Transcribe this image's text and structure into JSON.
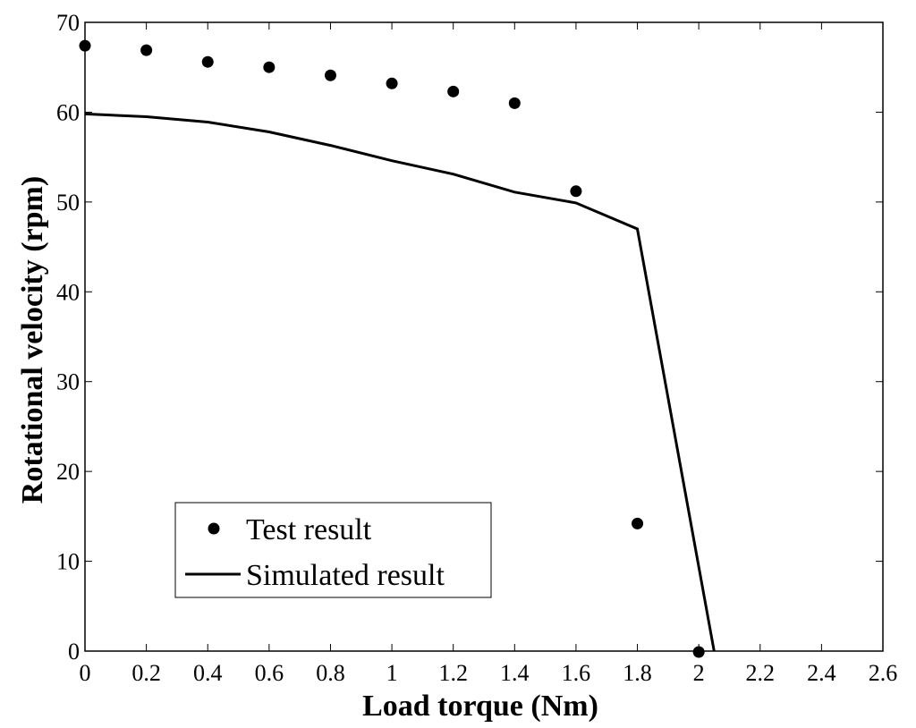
{
  "chart_data": {
    "type": "line",
    "xlabel": "Load torque (Nm)",
    "ylabel": "Rotational  velocity (rpm)",
    "xlim": [
      0,
      2.6
    ],
    "ylim": [
      0,
      70
    ],
    "xticks": [
      "0",
      "0.2",
      "0.4",
      "0.6",
      "0.8",
      "1",
      "1.2",
      "1.4",
      "1.6",
      "1.8",
      "2",
      "2.2",
      "2.4",
      "2.6"
    ],
    "yticks": [
      "0",
      "10",
      "20",
      "30",
      "40",
      "50",
      "60",
      "70"
    ],
    "grid": false,
    "legend_position": "bottom-left",
    "series": [
      {
        "name": "Test result",
        "style": "markers",
        "color": "#000000",
        "x": [
          0,
          0.2,
          0.4,
          0.6,
          0.8,
          1.0,
          1.2,
          1.4,
          1.6,
          1.8,
          2.0
        ],
        "y": [
          67.4,
          66.9,
          65.6,
          65.0,
          64.1,
          63.2,
          62.3,
          61.0,
          51.2,
          14.2,
          -0.1
        ]
      },
      {
        "name": "Simulated result",
        "style": "line",
        "color": "#000000",
        "x": [
          0,
          0.2,
          0.4,
          0.6,
          0.8,
          1.0,
          1.2,
          1.4,
          1.6,
          1.8,
          2.05
        ],
        "y": [
          59.8,
          59.5,
          58.9,
          57.8,
          56.3,
          54.6,
          53.1,
          51.1,
          49.9,
          47.0,
          0
        ]
      }
    ]
  }
}
